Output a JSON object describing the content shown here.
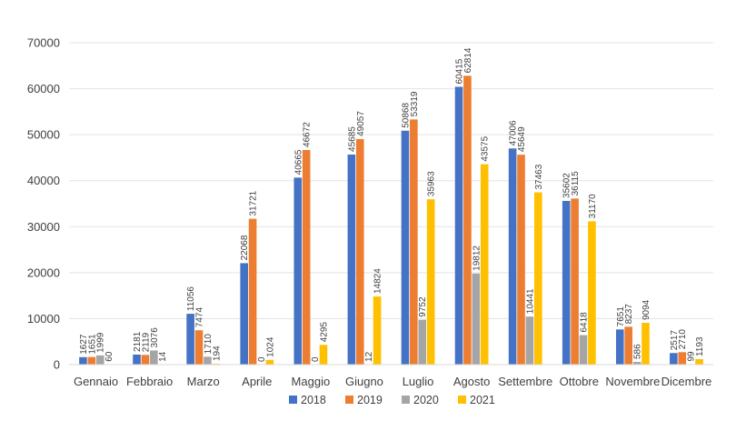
{
  "chart_data": {
    "type": "bar",
    "title": "",
    "xlabel": "",
    "ylabel": "",
    "ylim": [
      0,
      70000
    ],
    "yticks": [
      "0",
      "10000",
      "20000",
      "30000",
      "40000",
      "50000",
      "60000",
      "70000"
    ],
    "grid": true,
    "legend_position": "bottom",
    "categories": [
      "Gennaio",
      "Febbraio",
      "Marzo",
      "Aprile",
      "Maggio",
      "Giugno",
      "Luglio",
      "Agosto",
      "Settembre",
      "Ottobre",
      "Novembre",
      "Dicembre"
    ],
    "series": [
      {
        "name": "2018",
        "color": "#4472C4",
        "values": [
          1627,
          2181,
          11056,
          22068,
          40665,
          45685,
          50868,
          60415,
          47006,
          35602,
          7651,
          2517
        ]
      },
      {
        "name": "2019",
        "color": "#ED7D31",
        "values": [
          1651,
          2119,
          7474,
          31721,
          46672,
          49057,
          53319,
          62814,
          45649,
          36115,
          8237,
          2710
        ]
      },
      {
        "name": "2020",
        "color": "#A5A5A5",
        "values": [
          1999,
          3076,
          1710,
          0,
          0,
          12,
          9752,
          19812,
          10441,
          6418,
          586,
          99
        ]
      },
      {
        "name": "2021",
        "color": "#FFC000",
        "values": [
          60,
          14,
          194,
          1024,
          4295,
          14824,
          35963,
          43575,
          37463,
          31170,
          9094,
          1193
        ]
      }
    ]
  }
}
